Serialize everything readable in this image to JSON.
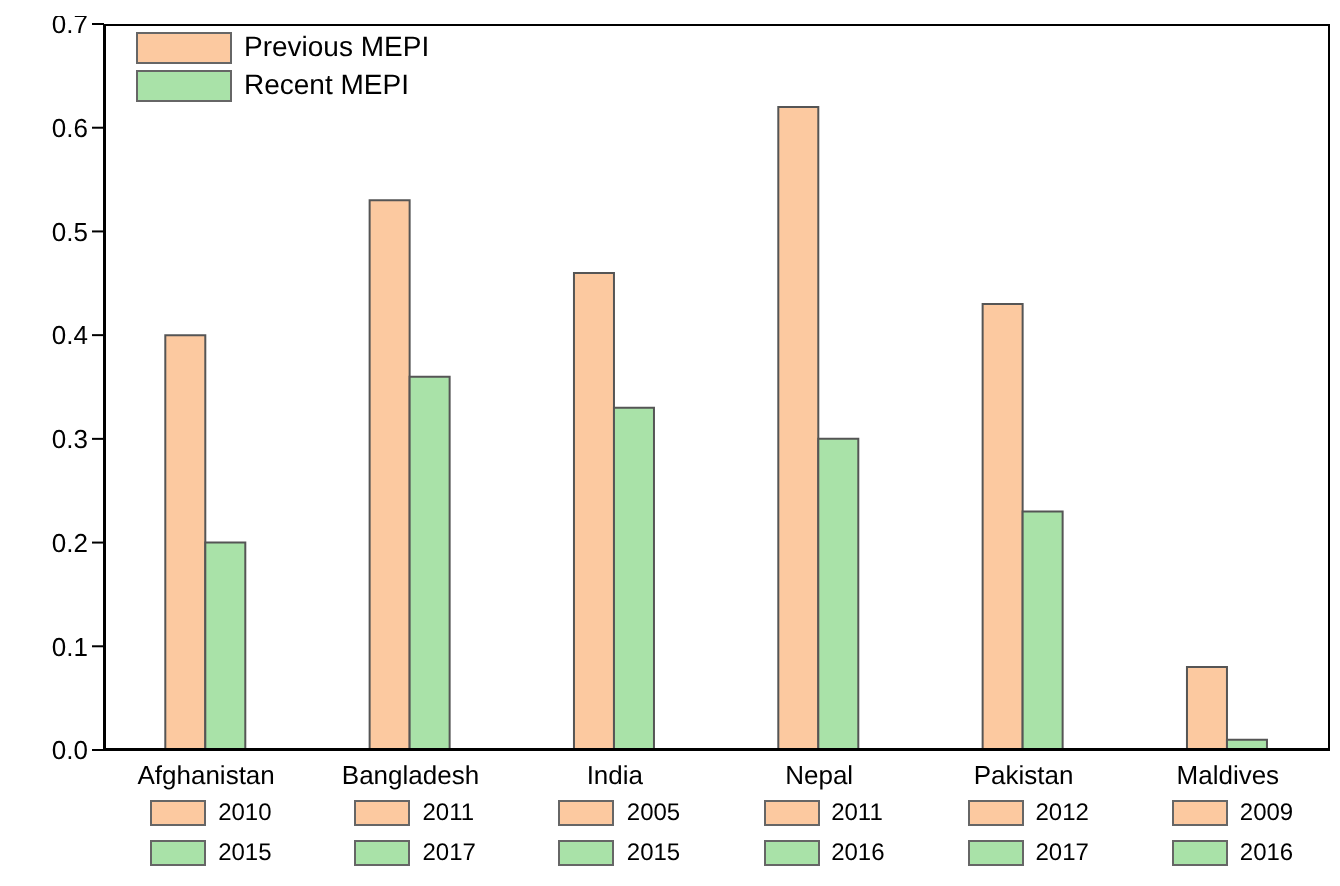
{
  "chart_data": {
    "type": "bar",
    "categories": [
      "Afghanistan",
      "Bangladesh",
      "India",
      "Nepal",
      "Pakistan",
      "Maldives"
    ],
    "series": [
      {
        "name": "Previous MEPI",
        "color": "#fcc9a0",
        "values": [
          0.4,
          0.53,
          0.46,
          0.62,
          0.43,
          0.08
        ]
      },
      {
        "name": "Recent MEPI",
        "color": "#a9e2a8",
        "values": [
          0.2,
          0.36,
          0.33,
          0.3,
          0.23,
          0.01
        ]
      }
    ],
    "ylim": [
      0,
      0.7
    ],
    "yticks": [
      {
        "value": 0,
        "label": "0.0"
      },
      0.1,
      0.2,
      0.3,
      0.4,
      0.5,
      0.6,
      0.7
    ],
    "legend": "top left",
    "grid": false,
    "annotations": [
      "2010",
      "2015",
      "2011",
      "2017",
      "2005",
      "2015",
      "2011",
      "2016",
      "2012",
      "2017",
      "2009",
      "2016"
    ]
  }
}
